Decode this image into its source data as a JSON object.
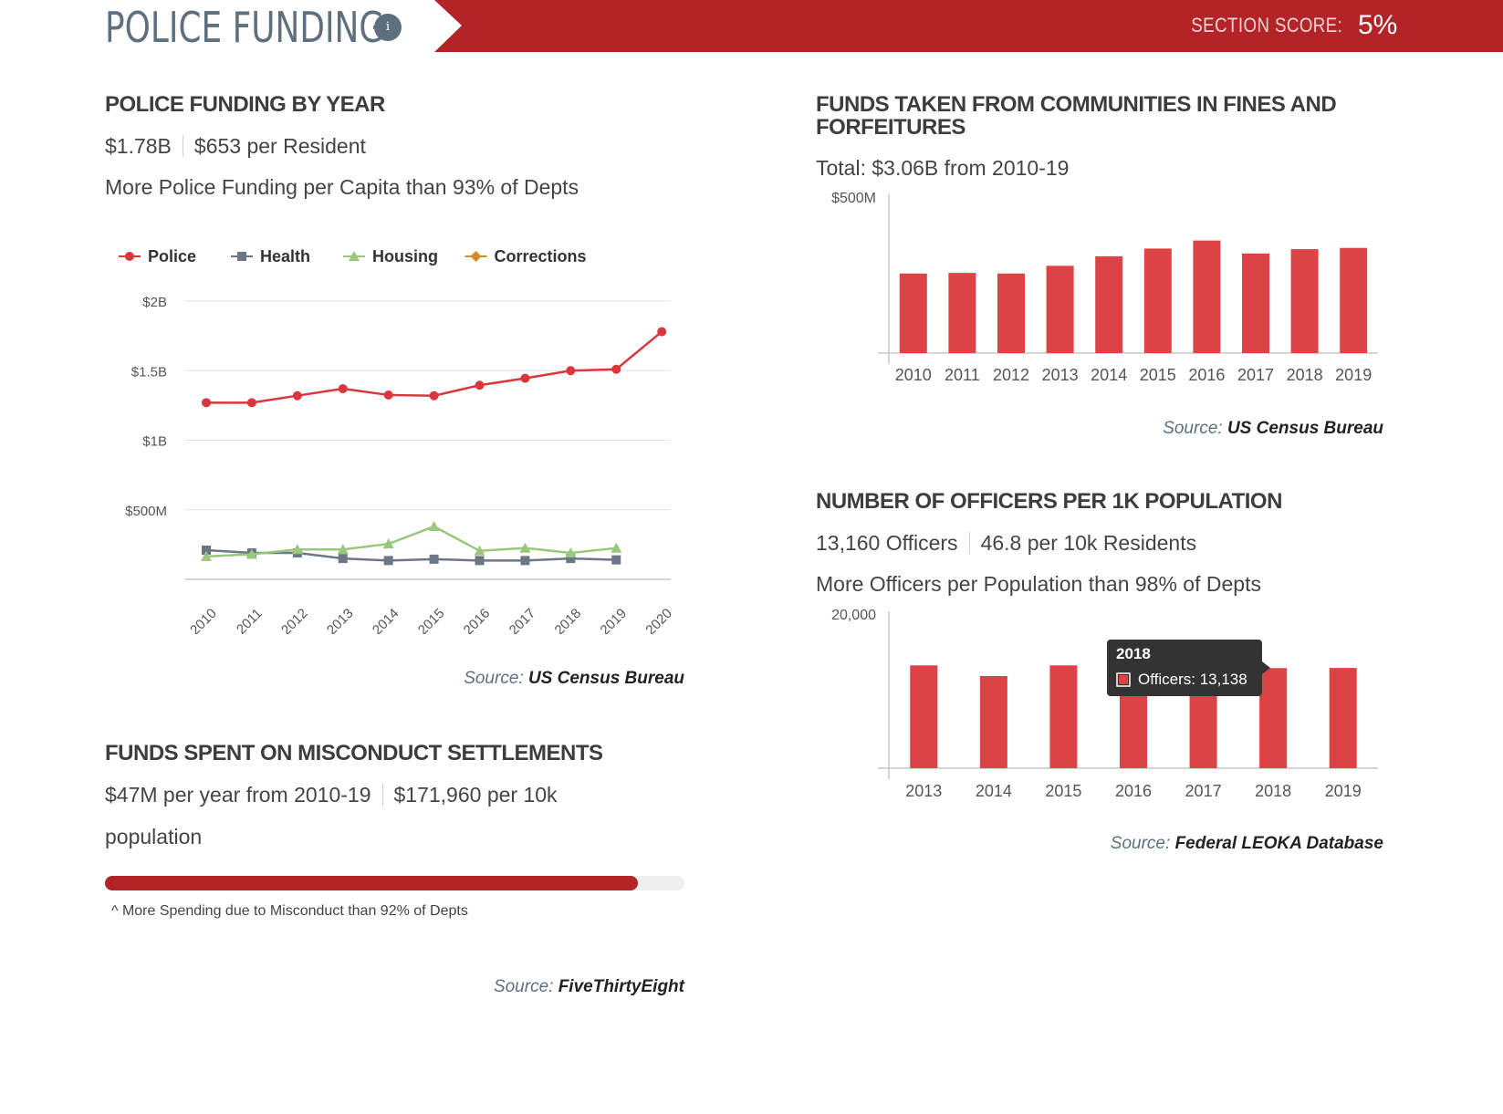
{
  "header": {
    "title": "POLICE FUNDING",
    "info_icon": "info-icon",
    "info_glyph": "i",
    "section_score_label": "SECTION SCORE:",
    "section_score_value": "5%",
    "banner_color": "#b22427"
  },
  "police_funding": {
    "heading": "POLICE FUNDING BY YEAR",
    "total": "$1.78B",
    "per_resident": "$653 per Resident",
    "comparison": "More Police Funding per Capita than 93% of Depts",
    "source_label": "Source:",
    "source_value": "US Census Bureau"
  },
  "misconduct": {
    "heading": "FUNDS SPENT ON MISCONDUCT SETTLEMENTS",
    "per_year": "$47M per year from 2010-19",
    "per_10k_line1": "$171,960 per 10k",
    "per_10k_line2": "population",
    "percentile": 92,
    "note": "^  More Spending due to Misconduct than 92% of Depts",
    "source_label": "Source:",
    "source_value": "FiveThirtyEight"
  },
  "fines": {
    "heading_line1": "FUNDS TAKEN FROM COMMUNITIES IN FINES AND",
    "heading_line2": "FORFEITURES",
    "total": "Total: $3.06B from 2010-19",
    "source_label": "Source:",
    "source_value": "US Census Bureau"
  },
  "officers": {
    "heading": "NUMBER OF OFFICERS PER 1K POPULATION",
    "count": "13,160 Officers",
    "per_10k": "46.8 per 10k Residents",
    "comparison": "More Officers per Population than 98% of Depts",
    "source_label": "Source:",
    "source_value": "Federal LEOKA Database",
    "tooltip": {
      "title": "2018",
      "label": "Officers: 13,138"
    }
  },
  "chart_data": [
    {
      "type": "line",
      "title": "POLICE FUNDING BY YEAR",
      "x": [
        "2010",
        "2011",
        "2012",
        "2013",
        "2014",
        "2015",
        "2016",
        "2017",
        "2018",
        "2019",
        "2020"
      ],
      "y_ticks": [
        "$2B",
        "$1.5B",
        "$1B",
        "$500M"
      ],
      "y_tick_values": [
        2000,
        1500,
        1000,
        500
      ],
      "ylim": [
        0,
        2000
      ],
      "legend_position": "top-left",
      "grid": true,
      "series": [
        {
          "name": "Police",
          "color": "#d9363e",
          "marker": "circle",
          "values": [
            1270,
            1270,
            1320,
            1370,
            1325,
            1320,
            1395,
            1445,
            1500,
            1510,
            1780
          ]
        },
        {
          "name": "Health",
          "color": "#6b7787",
          "marker": "square",
          "values": [
            210,
            190,
            190,
            150,
            135,
            145,
            135,
            135,
            150,
            140,
            null
          ]
        },
        {
          "name": "Housing",
          "color": "#99c77c",
          "marker": "triangle",
          "values": [
            165,
            180,
            215,
            215,
            255,
            380,
            205,
            225,
            190,
            225,
            null
          ]
        },
        {
          "name": "Corrections",
          "color": "#d08a2c",
          "marker": "diamond",
          "values": [
            null,
            null,
            null,
            null,
            null,
            null,
            null,
            null,
            null,
            null,
            null
          ]
        }
      ]
    },
    {
      "type": "bar",
      "title": "FUNDS TAKEN FROM COMMUNITIES IN FINES AND FORFEITURES",
      "categories": [
        "2010",
        "2011",
        "2012",
        "2013",
        "2014",
        "2015",
        "2016",
        "2017",
        "2018",
        "2019"
      ],
      "values": [
        258,
        260,
        258,
        283,
        314,
        339,
        365,
        323,
        337,
        341
      ],
      "y_ticks": [
        "$500M"
      ],
      "ylim": [
        0,
        500
      ],
      "color": "#dc4246"
    },
    {
      "type": "bar",
      "title": "NUMBER OF OFFICERS PER 1K POPULATION",
      "categories": [
        "2013",
        "2014",
        "2015",
        "2016",
        "2017",
        "2018",
        "2019"
      ],
      "values": [
        13500,
        12100,
        13500,
        13600,
        13200,
        13138,
        13160
      ],
      "y_ticks": [
        "20,000"
      ],
      "ylim": [
        0,
        20000
      ],
      "color": "#dc4246"
    }
  ]
}
